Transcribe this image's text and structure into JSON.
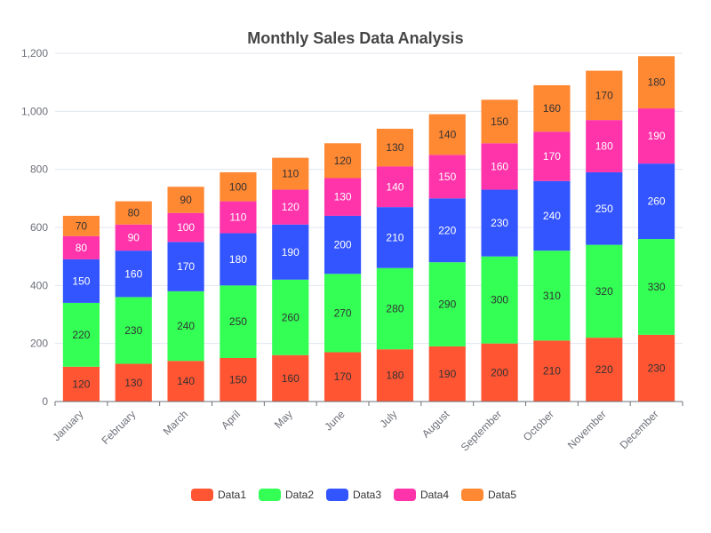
{
  "chart_data": {
    "type": "bar",
    "stacked": true,
    "title": "Monthly Sales Data Analysis",
    "xlabel": "",
    "ylabel": "",
    "categories": [
      "January",
      "February",
      "March",
      "April",
      "May",
      "June",
      "July",
      "August",
      "September",
      "October",
      "November",
      "December"
    ],
    "series": [
      {
        "name": "Data1",
        "color": "#ff5533",
        "label_color": "#333333",
        "values": [
          120,
          130,
          140,
          150,
          160,
          170,
          180,
          190,
          200,
          210,
          220,
          230
        ]
      },
      {
        "name": "Data2",
        "color": "#33ff55",
        "label_color": "#333333",
        "values": [
          220,
          230,
          240,
          250,
          260,
          270,
          280,
          290,
          300,
          310,
          320,
          330
        ]
      },
      {
        "name": "Data3",
        "color": "#3355ff",
        "label_color": "#ffffff",
        "values": [
          150,
          160,
          170,
          180,
          190,
          200,
          210,
          220,
          230,
          240,
          250,
          260
        ]
      },
      {
        "name": "Data4",
        "color": "#ff33aa",
        "label_color": "#ffffff",
        "values": [
          80,
          90,
          100,
          110,
          120,
          130,
          140,
          150,
          160,
          170,
          180,
          190
        ]
      },
      {
        "name": "Data5",
        "color": "#ff8833",
        "label_color": "#333333",
        "values": [
          70,
          80,
          90,
          100,
          110,
          120,
          130,
          140,
          150,
          160,
          170,
          180
        ]
      }
    ],
    "ylim": [
      0,
      1200
    ],
    "yticks": [
      0,
      200,
      400,
      600,
      800,
      1000,
      1200
    ],
    "ytick_labels": [
      "0",
      "200",
      "400",
      "600",
      "800",
      "1,000",
      "1,200"
    ],
    "grid": true,
    "legend_position": "bottom-center"
  }
}
